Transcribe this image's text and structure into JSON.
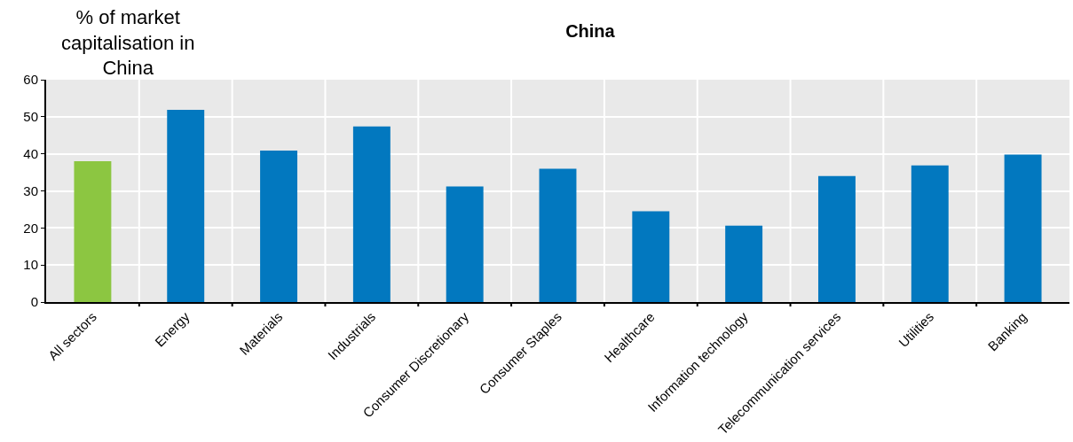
{
  "chart_data": {
    "type": "bar",
    "title": "China",
    "ylabel": "% of market capitalisation in China",
    "categories": [
      "All sectors",
      "Energy",
      "Materials",
      "Industrials",
      "Consumer Discretionary",
      "Consumer Staples",
      "Healthcare",
      "Information technology",
      "Telecommunication services",
      "Utilities",
      "Banking"
    ],
    "values": [
      38,
      51.9,
      40.9,
      47.4,
      31.2,
      36,
      24.5,
      20.6,
      34,
      36.9,
      39.8
    ],
    "colors": [
      "#8cc641",
      "#0278bf",
      "#0278bf",
      "#0278bf",
      "#0278bf",
      "#0278bf",
      "#0278bf",
      "#0278bf",
      "#0278bf",
      "#0278bf",
      "#0278bf"
    ],
    "ylim": [
      0,
      60
    ],
    "yticks": [
      0,
      10,
      20,
      30,
      40,
      50,
      60
    ],
    "grid": true
  }
}
